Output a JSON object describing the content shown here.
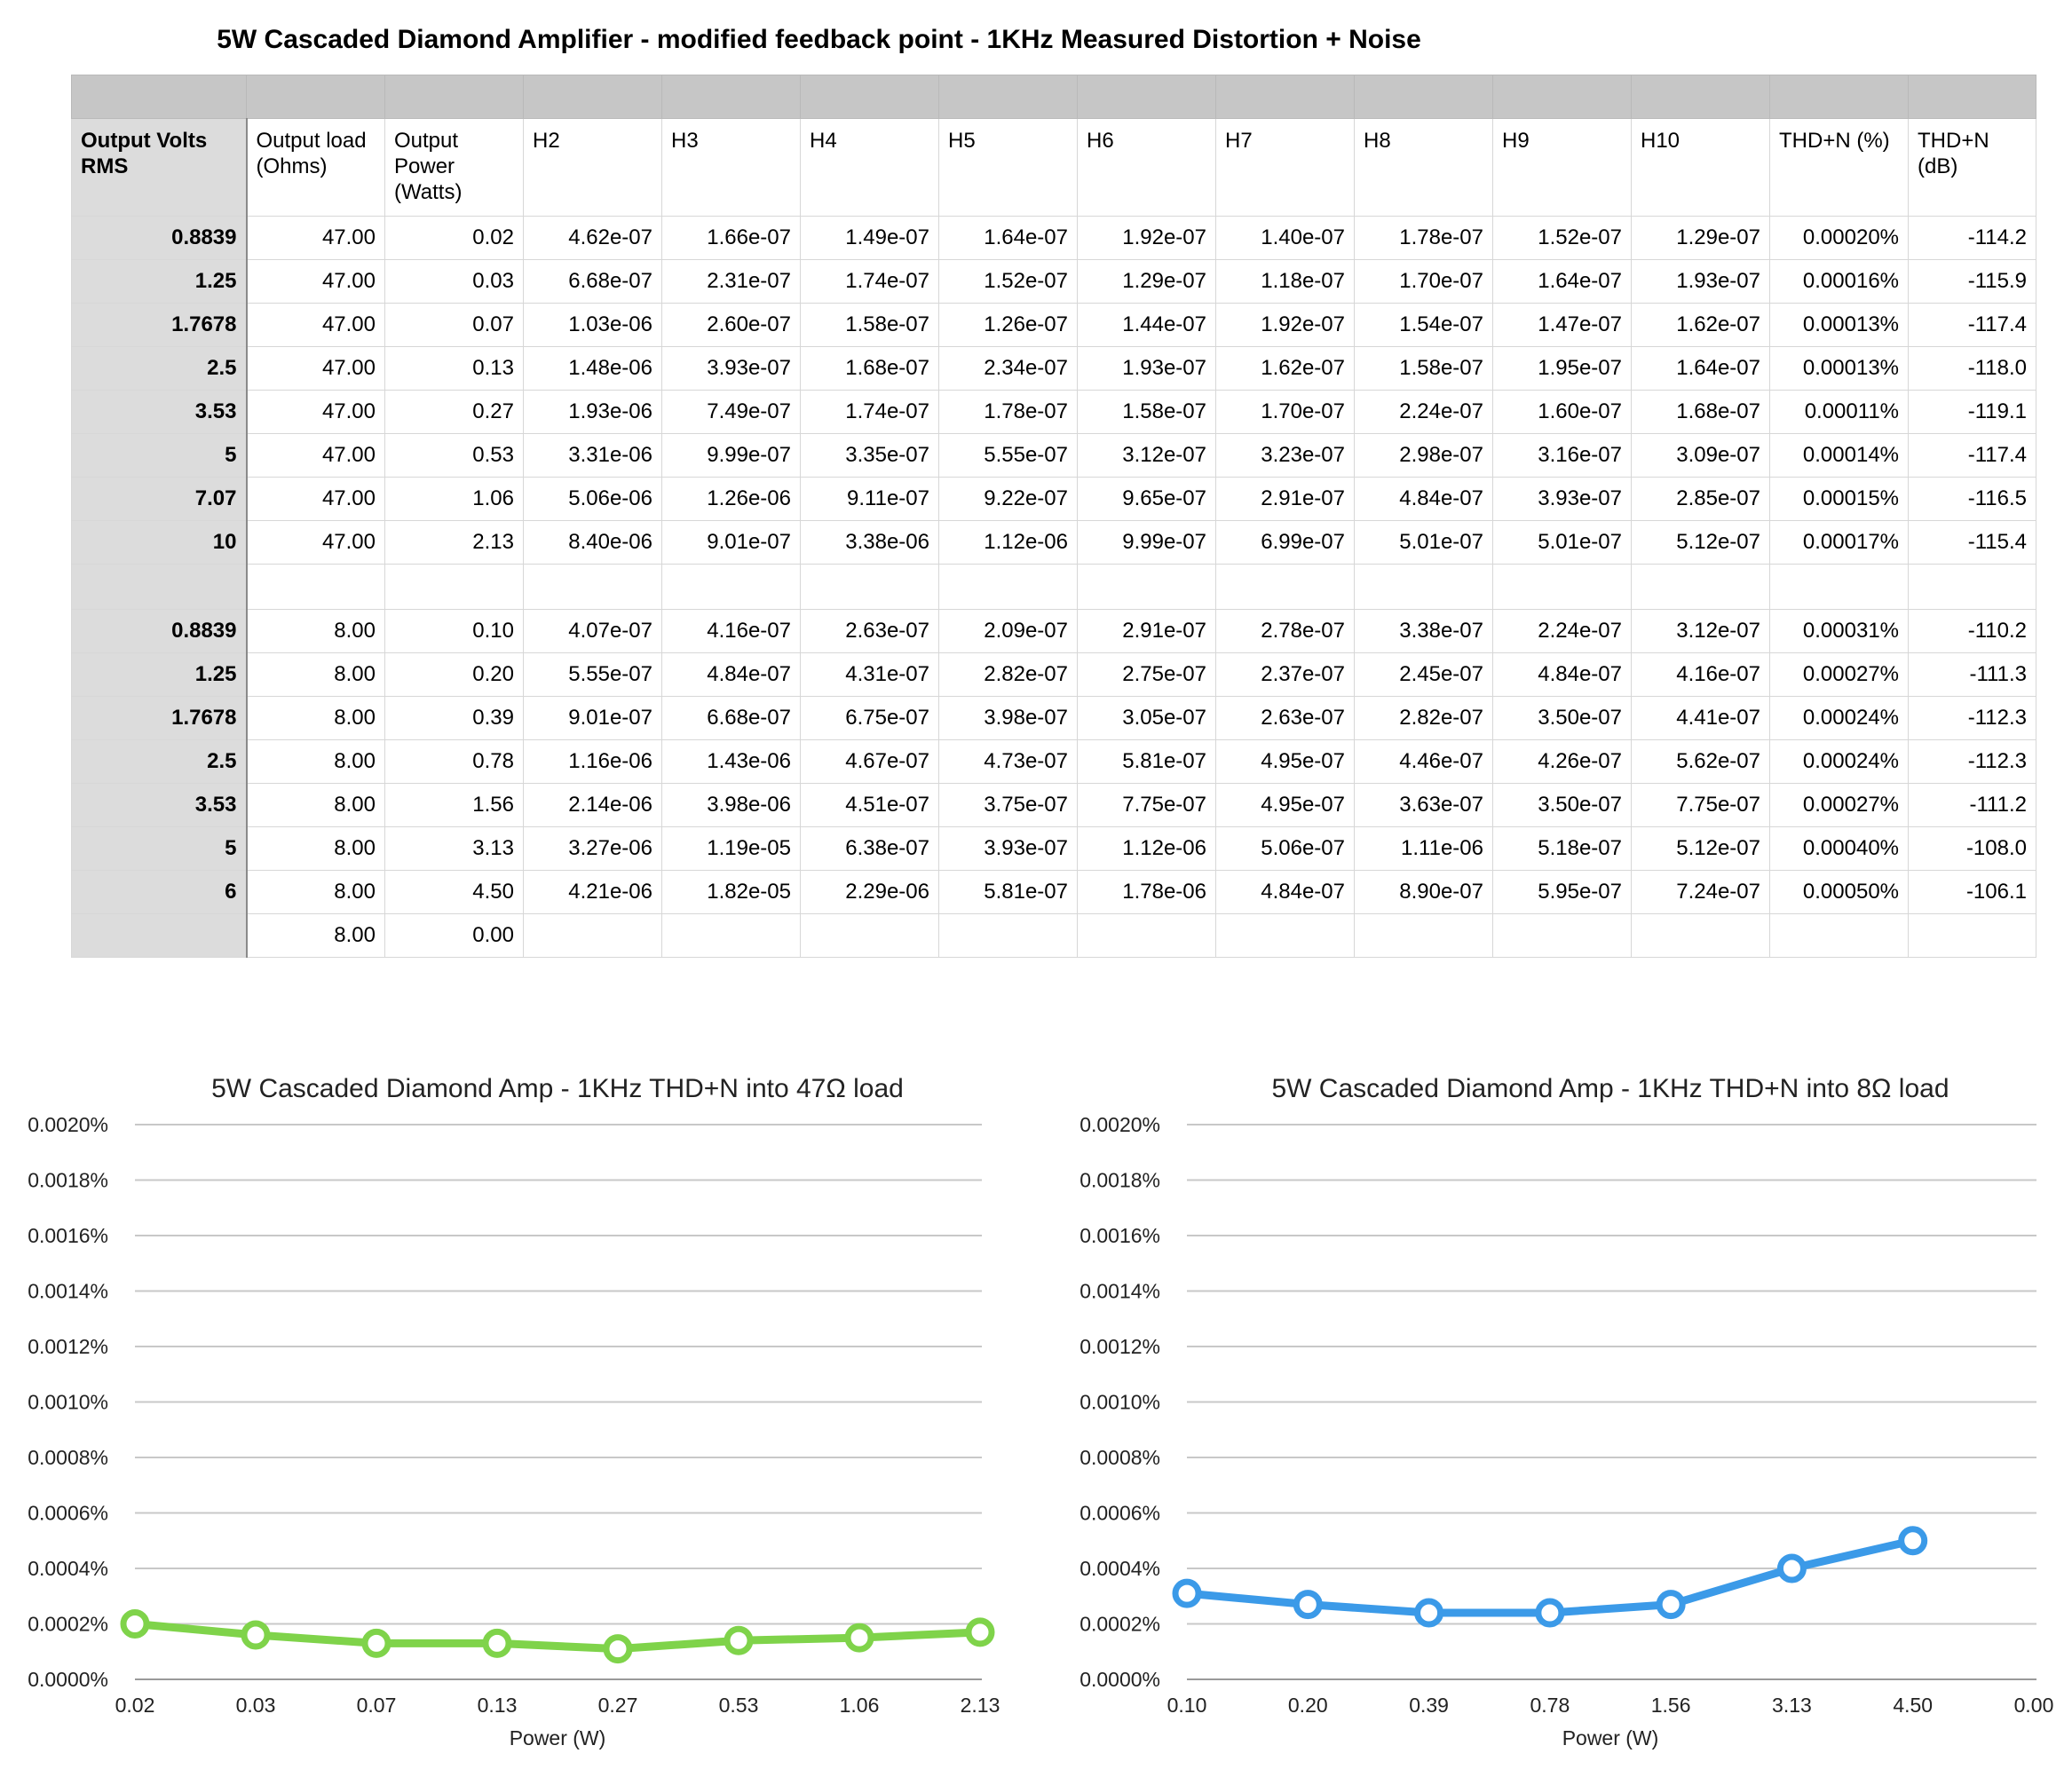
{
  "title": "5W Cascaded Diamond Amplifier - modified feedback point - 1KHz Measured Distortion + Noise",
  "table": {
    "headers": [
      "Output Volts RMS",
      "Output load (Ohms)",
      "Output Power (Watts)",
      "H2",
      "H3",
      "H4",
      "H5",
      "H6",
      "H7",
      "H8",
      "H9",
      "H10",
      "THD+N (%)",
      "THD+N (dB)"
    ],
    "rows47": [
      [
        "0.8839",
        "47.00",
        "0.02",
        "4.62e-07",
        "1.66e-07",
        "1.49e-07",
        "1.64e-07",
        "1.92e-07",
        "1.40e-07",
        "1.78e-07",
        "1.52e-07",
        "1.29e-07",
        "0.00020%",
        "-114.2"
      ],
      [
        "1.25",
        "47.00",
        "0.03",
        "6.68e-07",
        "2.31e-07",
        "1.74e-07",
        "1.52e-07",
        "1.29e-07",
        "1.18e-07",
        "1.70e-07",
        "1.64e-07",
        "1.93e-07",
        "0.00016%",
        "-115.9"
      ],
      [
        "1.7678",
        "47.00",
        "0.07",
        "1.03e-06",
        "2.60e-07",
        "1.58e-07",
        "1.26e-07",
        "1.44e-07",
        "1.92e-07",
        "1.54e-07",
        "1.47e-07",
        "1.62e-07",
        "0.00013%",
        "-117.4"
      ],
      [
        "2.5",
        "47.00",
        "0.13",
        "1.48e-06",
        "3.93e-07",
        "1.68e-07",
        "2.34e-07",
        "1.93e-07",
        "1.62e-07",
        "1.58e-07",
        "1.95e-07",
        "1.64e-07",
        "0.00013%",
        "-118.0"
      ],
      [
        "3.53",
        "47.00",
        "0.27",
        "1.93e-06",
        "7.49e-07",
        "1.74e-07",
        "1.78e-07",
        "1.58e-07",
        "1.70e-07",
        "2.24e-07",
        "1.60e-07",
        "1.68e-07",
        "0.00011%",
        "-119.1"
      ],
      [
        "5",
        "47.00",
        "0.53",
        "3.31e-06",
        "9.99e-07",
        "3.35e-07",
        "5.55e-07",
        "3.12e-07",
        "3.23e-07",
        "2.98e-07",
        "3.16e-07",
        "3.09e-07",
        "0.00014%",
        "-117.4"
      ],
      [
        "7.07",
        "47.00",
        "1.06",
        "5.06e-06",
        "1.26e-06",
        "9.11e-07",
        "9.22e-07",
        "9.65e-07",
        "2.91e-07",
        "4.84e-07",
        "3.93e-07",
        "2.85e-07",
        "0.00015%",
        "-116.5"
      ],
      [
        "10",
        "47.00",
        "2.13",
        "8.40e-06",
        "9.01e-07",
        "3.38e-06",
        "1.12e-06",
        "9.99e-07",
        "6.99e-07",
        "5.01e-07",
        "5.01e-07",
        "5.12e-07",
        "0.00017%",
        "-115.4"
      ]
    ],
    "rows8": [
      [
        "0.8839",
        "8.00",
        "0.10",
        "4.07e-07",
        "4.16e-07",
        "2.63e-07",
        "2.09e-07",
        "2.91e-07",
        "2.78e-07",
        "3.38e-07",
        "2.24e-07",
        "3.12e-07",
        "0.00031%",
        "-110.2"
      ],
      [
        "1.25",
        "8.00",
        "0.20",
        "5.55e-07",
        "4.84e-07",
        "4.31e-07",
        "2.82e-07",
        "2.75e-07",
        "2.37e-07",
        "2.45e-07",
        "4.84e-07",
        "4.16e-07",
        "0.00027%",
        "-111.3"
      ],
      [
        "1.7678",
        "8.00",
        "0.39",
        "9.01e-07",
        "6.68e-07",
        "6.75e-07",
        "3.98e-07",
        "3.05e-07",
        "2.63e-07",
        "2.82e-07",
        "3.50e-07",
        "4.41e-07",
        "0.00024%",
        "-112.3"
      ],
      [
        "2.5",
        "8.00",
        "0.78",
        "1.16e-06",
        "1.43e-06",
        "4.67e-07",
        "4.73e-07",
        "5.81e-07",
        "4.95e-07",
        "4.46e-07",
        "4.26e-07",
        "5.62e-07",
        "0.00024%",
        "-112.3"
      ],
      [
        "3.53",
        "8.00",
        "1.56",
        "2.14e-06",
        "3.98e-06",
        "4.51e-07",
        "3.75e-07",
        "7.75e-07",
        "4.95e-07",
        "3.63e-07",
        "3.50e-07",
        "7.75e-07",
        "0.00027%",
        "-111.2"
      ],
      [
        "5",
        "8.00",
        "3.13",
        "3.27e-06",
        "1.19e-05",
        "6.38e-07",
        "3.93e-07",
        "1.12e-06",
        "5.06e-07",
        "1.11e-06",
        "5.18e-07",
        "5.12e-07",
        "0.00040%",
        "-108.0"
      ],
      [
        "6",
        "8.00",
        "4.50",
        "4.21e-06",
        "1.82e-05",
        "2.29e-06",
        "5.81e-07",
        "1.78e-06",
        "4.84e-07",
        "8.90e-07",
        "5.95e-07",
        "7.24e-07",
        "0.00050%",
        "-106.1"
      ],
      [
        "",
        "8.00",
        "0.00",
        "",
        "",
        "",
        "",
        "",
        "",
        "",
        "",
        "",
        "",
        ""
      ]
    ],
    "warning_icon": "warning-triangle-icon",
    "warning_color": "#e2573b"
  },
  "chart_data": [
    {
      "type": "line",
      "title": "5W Cascaded Diamond Amp - 1KHz THD+N into 47Ω load",
      "xlabel": "Power (W)",
      "ylabel": "",
      "categories": [
        "0.02",
        "0.03",
        "0.07",
        "0.13",
        "0.27",
        "0.53",
        "1.06",
        "2.13"
      ],
      "series": [
        {
          "values": [
            0.0002,
            0.00016,
            0.00013,
            0.00013,
            0.00011,
            0.00014,
            0.00015,
            0.00017
          ]
        }
      ],
      "ylim": [
        0,
        0.002
      ],
      "yticks": [
        "0.0000%",
        "0.0002%",
        "0.0004%",
        "0.0006%",
        "0.0008%",
        "0.0010%",
        "0.0012%",
        "0.0014%",
        "0.0016%",
        "0.0018%",
        "0.0020%"
      ],
      "grid": true,
      "color": "#7fd34a"
    },
    {
      "type": "line",
      "title": "5W Cascaded Diamond Amp - 1KHz THD+N into 8Ω load",
      "xlabel": "Power (W)",
      "ylabel": "",
      "categories": [
        "0.10",
        "0.20",
        "0.39",
        "0.78",
        "1.56",
        "3.13",
        "4.50",
        "0.00"
      ],
      "series": [
        {
          "values": [
            0.00031,
            0.00027,
            0.00024,
            0.00024,
            0.00027,
            0.0004,
            0.0005,
            null
          ]
        }
      ],
      "ylim": [
        0,
        0.002
      ],
      "yticks": [
        "0.0000%",
        "0.0002%",
        "0.0004%",
        "0.0006%",
        "0.0008%",
        "0.0010%",
        "0.0012%",
        "0.0014%",
        "0.0016%",
        "0.0018%",
        "0.0020%"
      ],
      "grid": true,
      "color": "#3b9ae8"
    }
  ]
}
